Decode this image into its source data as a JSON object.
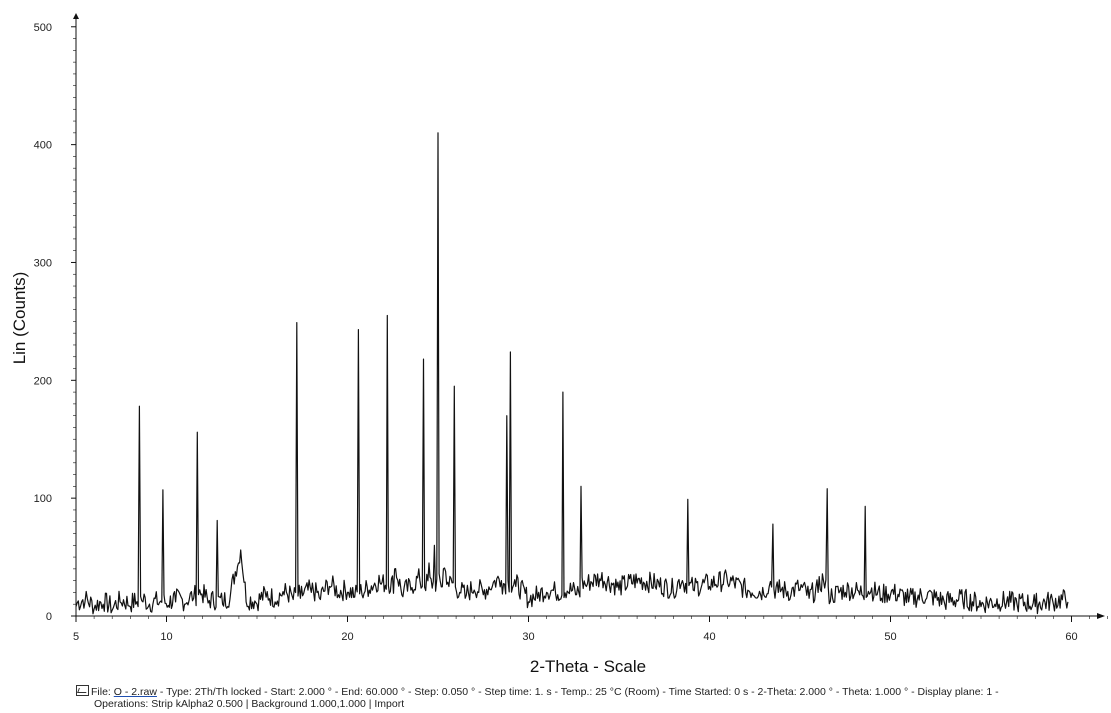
{
  "chart_data": {
    "type": "line",
    "title": "",
    "xlabel": "2-Theta - Scale",
    "ylabel": "Lin (Counts)",
    "xlim": [
      5,
      62
    ],
    "ylim": [
      0,
      510
    ],
    "x_ticks": [
      5,
      10,
      20,
      30,
      40,
      50,
      60
    ],
    "y_ticks": [
      0,
      100,
      200,
      300,
      400,
      500
    ],
    "grid": false,
    "line_color": "#111111",
    "peaks": [
      {
        "x": 8.5,
        "y": 178
      },
      {
        "x": 9.8,
        "y": 107
      },
      {
        "x": 11.7,
        "y": 156
      },
      {
        "x": 12.8,
        "y": 81
      },
      {
        "x": 14.1,
        "y": 56
      },
      {
        "x": 17.2,
        "y": 249
      },
      {
        "x": 20.6,
        "y": 243
      },
      {
        "x": 22.2,
        "y": 255
      },
      {
        "x": 24.2,
        "y": 218
      },
      {
        "x": 25.0,
        "y": 410
      },
      {
        "x": 25.9,
        "y": 195
      },
      {
        "x": 29.0,
        "y": 224
      },
      {
        "x": 31.9,
        "y": 190
      },
      {
        "x": 32.9,
        "y": 110
      },
      {
        "x": 38.8,
        "y": 99
      },
      {
        "x": 43.5,
        "y": 78
      },
      {
        "x": 46.5,
        "y": 108
      },
      {
        "x": 48.6,
        "y": 93
      }
    ],
    "series": [
      {
        "x": [
          5.0,
          5.5,
          6.0,
          6.5,
          7.0,
          7.5,
          8.0,
          8.3,
          8.5,
          8.7,
          9.0,
          9.5,
          9.8,
          10.1,
          10.5,
          11.0,
          11.5,
          11.7,
          11.9,
          12.3,
          12.8,
          13.1,
          13.5,
          14.1,
          14.4,
          15.0,
          15.5,
          16.0,
          16.5,
          17.0,
          17.2,
          17.4,
          18.0,
          18.5,
          19.0,
          19.5,
          20.0,
          20.4,
          20.6,
          20.8,
          21.2,
          21.8,
          22.2,
          22.6,
          23.0,
          23.5,
          24.0,
          24.2,
          24.5,
          24.8,
          25.0,
          25.3,
          25.6,
          25.9,
          26.2,
          26.5,
          27.0,
          27.5,
          28.0,
          28.5,
          28.8,
          29.0,
          29.3,
          30.0,
          30.5,
          31.0,
          31.5,
          31.9,
          32.2,
          32.6,
          32.9,
          33.2,
          34.0,
          35.0,
          36.0,
          37.0,
          38.0,
          38.5,
          38.8,
          39.1,
          40.0,
          41.0,
          42.0,
          43.0,
          43.3,
          43.5,
          43.8,
          44.5,
          45.0,
          45.5,
          46.0,
          46.3,
          46.5,
          46.8,
          47.5,
          48.3,
          48.6,
          48.9,
          49.5,
          50.0,
          51.0,
          52.0,
          53.0,
          54.0,
          55.0,
          56.0,
          57.0,
          58.0,
          59.0,
          59.8
        ],
        "y": [
          8,
          12,
          6,
          10,
          5,
          11,
          8,
          10,
          178,
          12,
          8,
          10,
          107,
          9,
          12,
          10,
          15,
          156,
          18,
          11,
          81,
          10,
          14,
          56,
          12,
          10,
          16,
          12,
          18,
          14,
          249,
          15,
          20,
          14,
          25,
          18,
          20,
          16,
          243,
          18,
          22,
          28,
          255,
          40,
          18,
          22,
          30,
          218,
          45,
          60,
          410,
          40,
          25,
          195,
          20,
          15,
          22,
          18,
          25,
          30,
          170,
          224,
          25,
          12,
          15,
          20,
          18,
          190,
          20,
          18,
          110,
          25,
          30,
          22,
          28,
          25,
          20,
          30,
          99,
          22,
          25,
          28,
          20,
          18,
          25,
          78,
          20,
          18,
          22,
          15,
          20,
          30,
          108,
          15,
          20,
          18,
          93,
          20,
          15,
          18,
          12,
          15,
          10,
          12,
          8,
          10,
          9,
          8,
          10,
          12
        ]
      }
    ]
  },
  "footer": {
    "line1_prefix": "File:",
    "file_name": "O - 2.raw",
    "line1_rest": "- Type: 2Th/Th locked - Start: 2.000 ° - End: 60.000 ° - Step: 0.050 ° - Step time: 1. s - Temp.: 25 °C (Room) - Time Started: 0 s - 2-Theta: 2.000 ° - Theta: 1.000 ° - Display plane: 1 -",
    "line2": "Operations: Strip kAlpha2 0.500 | Background 1.000,1.000 | Import"
  }
}
